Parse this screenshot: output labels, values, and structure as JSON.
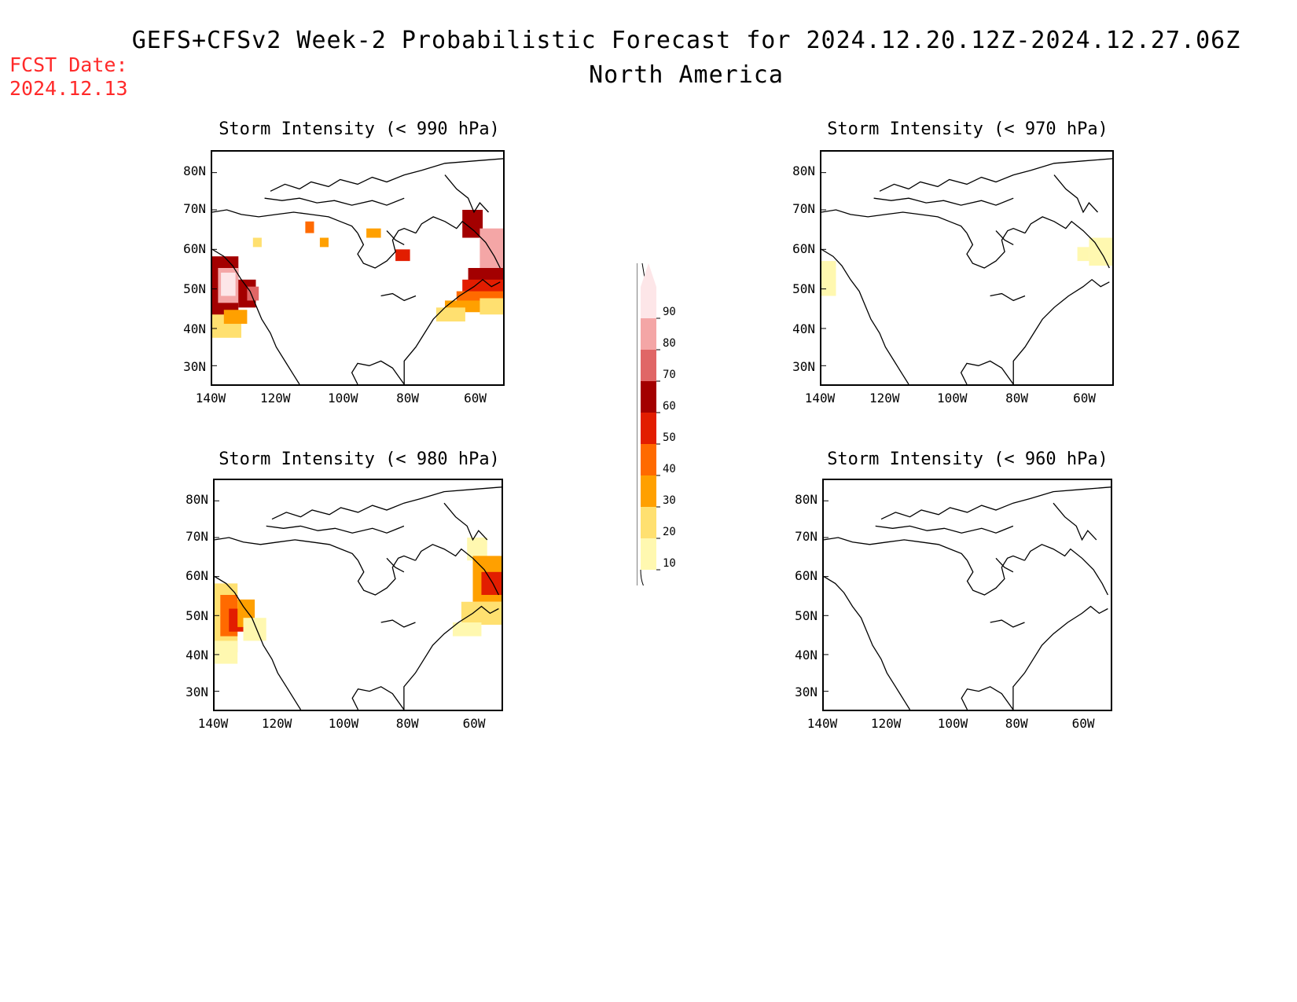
{
  "header": {
    "title": "GEFS+CFSv2 Week-2 Probabilistic Forecast for 2024.12.20.12Z-2024.12.27.06Z",
    "subtitle": "North America",
    "fcst_label": "FCST Date:",
    "fcst_date": "2024.12.13"
  },
  "axes": {
    "lat_ticks": [
      "80N",
      "70N",
      "60N",
      "50N",
      "40N",
      "30N"
    ],
    "lon_ticks": [
      "140W",
      "120W",
      "100W",
      "80W",
      "60W"
    ]
  },
  "panels": [
    {
      "id": "p990",
      "title": "Storm Intensity (< 990 hPa)"
    },
    {
      "id": "p970",
      "title": "Storm Intensity (< 970 hPa)"
    },
    {
      "id": "p980",
      "title": "Storm Intensity (< 980 hPa)"
    },
    {
      "id": "p960",
      "title": "Storm Intensity (< 960 hPa)"
    }
  ],
  "colorbar": {
    "levels": [
      "90",
      "80",
      "70",
      "60",
      "50",
      "40",
      "30",
      "20",
      "10"
    ],
    "colors": [
      "#fde6e8",
      "#f4a6a6",
      "#e06666",
      "#a30000",
      "#e21d00",
      "#ff6a00",
      "#ffa000",
      "#ffe070",
      "#fff8b0"
    ]
  }
}
